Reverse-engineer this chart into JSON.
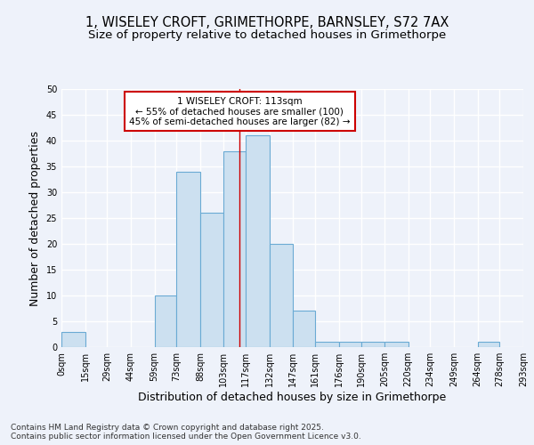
{
  "title1": "1, WISELEY CROFT, GRIMETHORPE, BARNSLEY, S72 7AX",
  "title2": "Size of property relative to detached houses in Grimethorpe",
  "xlabel": "Distribution of detached houses by size in Grimethorpe",
  "ylabel": "Number of detached properties",
  "bins": [
    0,
    15,
    29,
    44,
    59,
    73,
    88,
    103,
    117,
    132,
    147,
    161,
    176,
    190,
    205,
    220,
    234,
    249,
    264,
    278,
    293
  ],
  "bin_labels": [
    "0sqm",
    "15sqm",
    "29sqm",
    "44sqm",
    "59sqm",
    "73sqm",
    "88sqm",
    "103sqm",
    "117sqm",
    "132sqm",
    "147sqm",
    "161sqm",
    "176sqm",
    "190sqm",
    "205sqm",
    "220sqm",
    "234sqm",
    "249sqm",
    "264sqm",
    "278sqm",
    "293sqm"
  ],
  "counts": [
    3,
    0,
    0,
    0,
    10,
    34,
    26,
    38,
    41,
    20,
    7,
    1,
    1,
    1,
    1,
    0,
    0,
    0,
    1,
    0
  ],
  "bar_color": "#cce0f0",
  "bar_edge_color": "#6aaad4",
  "vline_x": 113,
  "vline_color": "#cc0000",
  "annotation_text": "1 WISELEY CROFT: 113sqm\n← 55% of detached houses are smaller (100)\n45% of semi-detached houses are larger (82) →",
  "annotation_box_color": "#ffffff",
  "annotation_box_edge_color": "#cc0000",
  "ylim": [
    0,
    50
  ],
  "yticks": [
    0,
    5,
    10,
    15,
    20,
    25,
    30,
    35,
    40,
    45,
    50
  ],
  "background_color": "#eef2fa",
  "grid_color": "#ffffff",
  "footer_text": "Contains HM Land Registry data © Crown copyright and database right 2025.\nContains public sector information licensed under the Open Government Licence v3.0.",
  "title_fontsize": 10.5,
  "subtitle_fontsize": 9.5,
  "axis_label_fontsize": 9,
  "tick_fontsize": 7,
  "annotation_fontsize": 7.5,
  "footer_fontsize": 6.5
}
